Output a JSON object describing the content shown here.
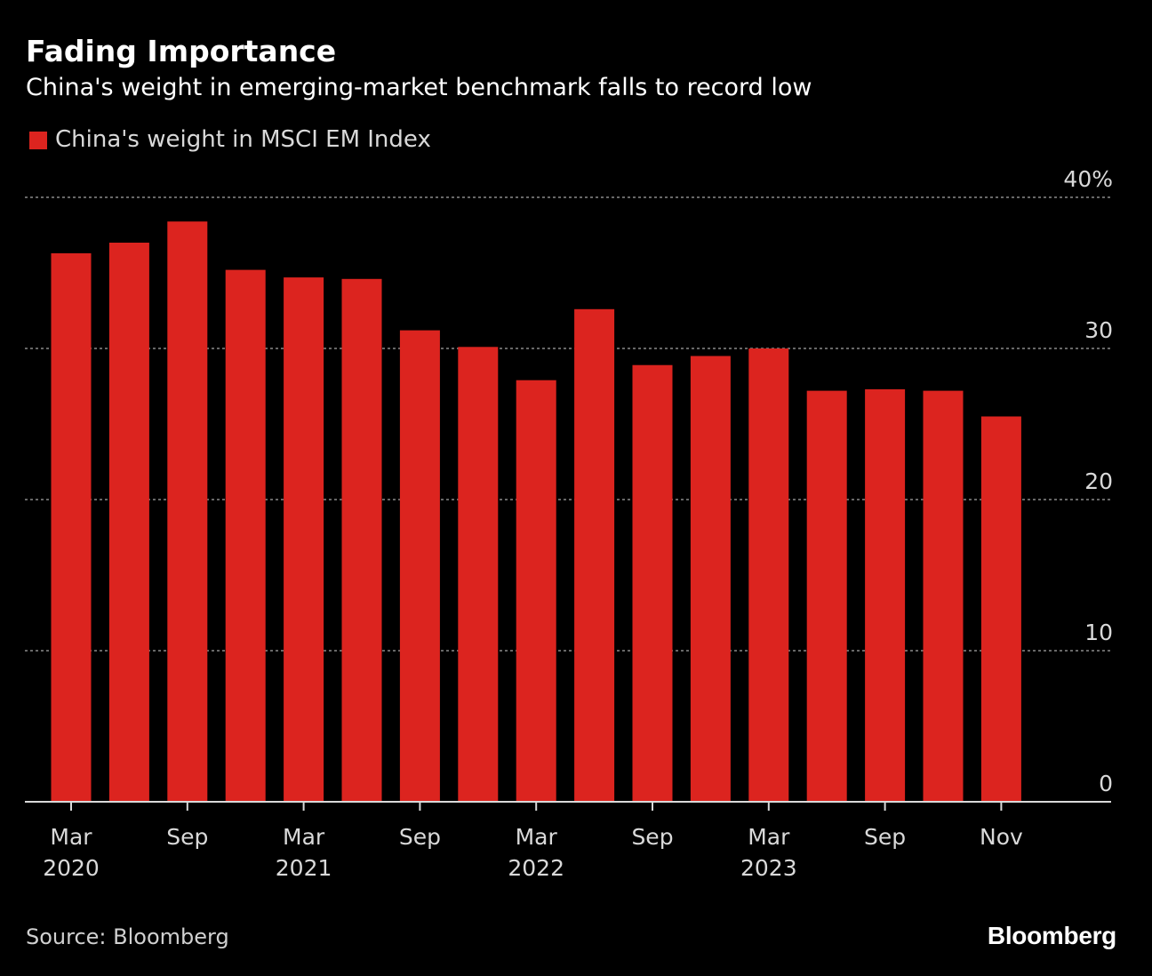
{
  "header": {
    "title": "Fading Importance",
    "subtitle": "China's weight in emerging-market benchmark falls to record low"
  },
  "legend": {
    "label": "China's weight in MSCI EM Index",
    "color": "#dc241f"
  },
  "footer": {
    "source": "Source: Bloomberg",
    "brand": "Bloomberg"
  },
  "colors": {
    "background": "#000000",
    "bar": "#dc241f",
    "gridline": "#8a8a8a",
    "axis": "#d9d9d9",
    "text": "#d9d9d9"
  },
  "chart_data": {
    "type": "bar",
    "title": "Fading Importance",
    "subtitle": "China's weight in emerging-market benchmark falls to record low",
    "series": [
      {
        "name": "China's weight in MSCI EM Index",
        "values": [
          36.3,
          37.0,
          38.4,
          35.2,
          34.7,
          34.6,
          31.2,
          30.1,
          27.9,
          32.6,
          28.9,
          29.5,
          30.0,
          27.2,
          27.3,
          27.2,
          25.5
        ]
      }
    ],
    "categories": [
      "Mar 2020",
      "Jun 2020",
      "Sep 2020",
      "Dec 2020",
      "Mar 2021",
      "Jun 2021",
      "Sep 2021",
      "Dec 2021",
      "Mar 2022",
      "Jun 2022",
      "Sep 2022",
      "Dec 2022",
      "Mar 2023",
      "Jun 2023",
      "Sep 2023",
      "Oct 2023",
      "Nov 2023"
    ],
    "xticks": [
      {
        "index": 0,
        "line1": "Mar",
        "line2": "2020"
      },
      {
        "index": 2,
        "line1": "Sep",
        "line2": ""
      },
      {
        "index": 4,
        "line1": "Mar",
        "line2": "2021"
      },
      {
        "index": 6,
        "line1": "Sep",
        "line2": ""
      },
      {
        "index": 8,
        "line1": "Mar",
        "line2": "2022"
      },
      {
        "index": 10,
        "line1": "Sep",
        "line2": ""
      },
      {
        "index": 12,
        "line1": "Mar",
        "line2": "2023"
      },
      {
        "index": 14,
        "line1": "Sep",
        "line2": ""
      },
      {
        "index": 16,
        "line1": "Nov",
        "line2": ""
      }
    ],
    "yticks": [
      0,
      10,
      20,
      30,
      40
    ],
    "ytick_labels": [
      "0",
      "10",
      "20",
      "30",
      "40%"
    ],
    "ylim": [
      0,
      40
    ],
    "xlabel": "",
    "ylabel": "",
    "grid": true,
    "y_axis_position": "right"
  }
}
